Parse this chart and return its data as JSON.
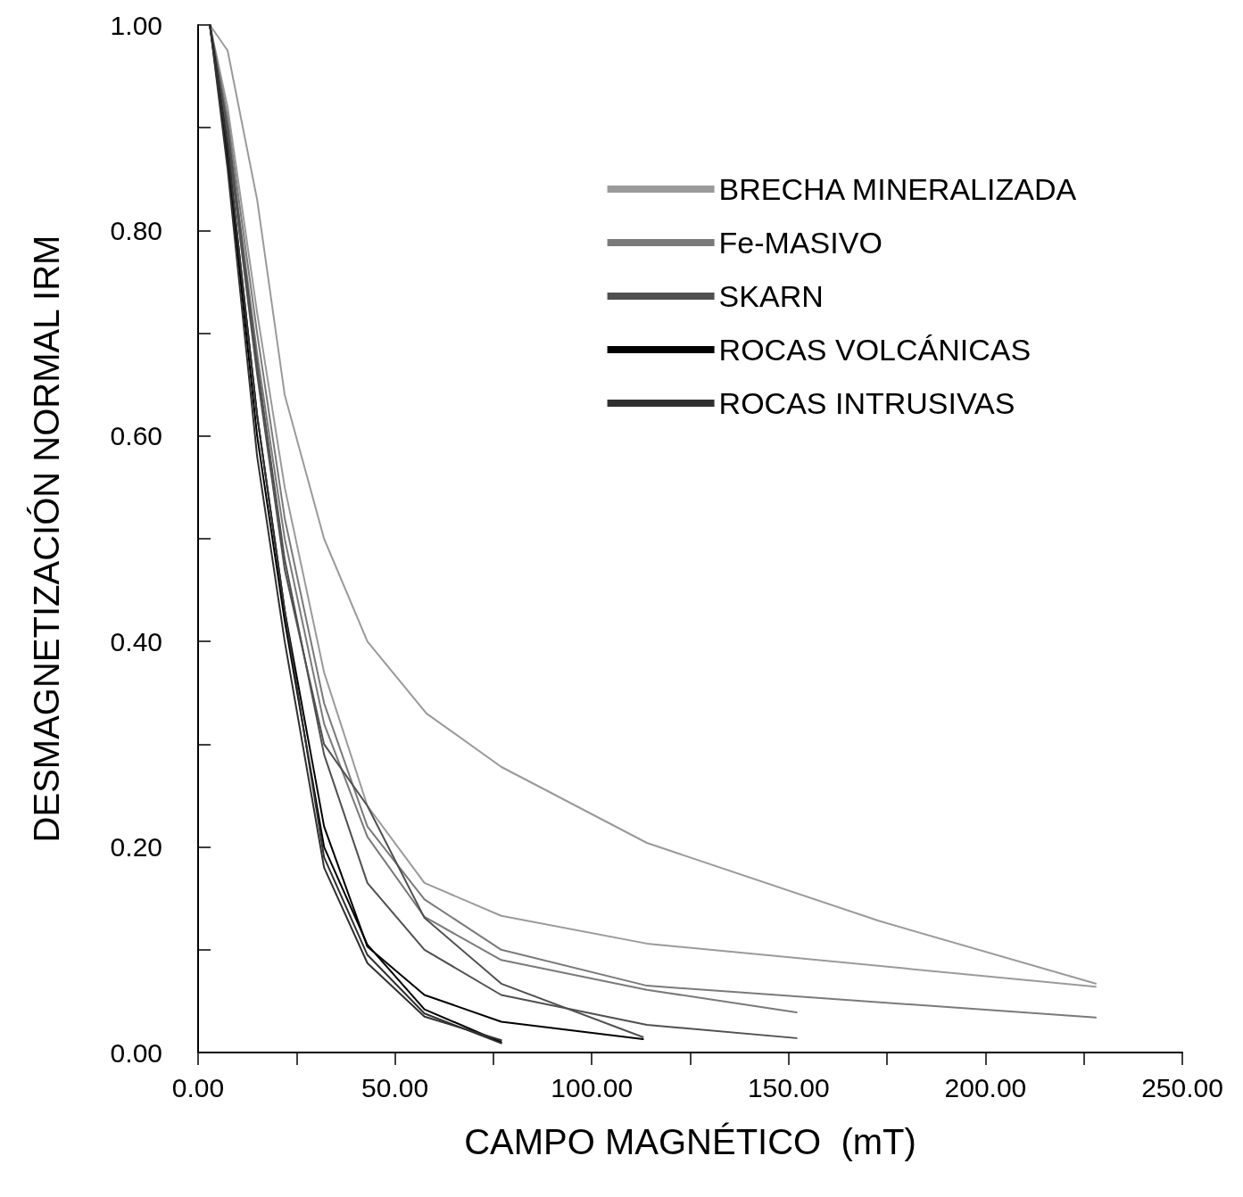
{
  "chart_data": {
    "type": "line",
    "xlabel": "CAMPO MAGNÉTICO  (mT)",
    "ylabel": "DESMAGNETIZACIÓN NORMAL IRM",
    "xlim": [
      0,
      250
    ],
    "ylim": [
      0,
      1
    ],
    "xticks": [
      {
        "value": 0,
        "label": "0.00"
      },
      {
        "value": 25,
        "label": null
      },
      {
        "value": 50,
        "label": "50.00"
      },
      {
        "value": 75,
        "label": null
      },
      {
        "value": 100,
        "label": "100.00"
      },
      {
        "value": 125,
        "label": null
      },
      {
        "value": 150,
        "label": "150.00"
      },
      {
        "value": 175,
        "label": null
      },
      {
        "value": 200,
        "label": "200.00"
      },
      {
        "value": 225,
        "label": null
      },
      {
        "value": 250,
        "label": "250.00"
      }
    ],
    "yticks": [
      {
        "value": 0,
        "label": "0.00"
      },
      {
        "value": 0.1,
        "label": null
      },
      {
        "value": 0.2,
        "label": "0.20"
      },
      {
        "value": 0.3,
        "label": null
      },
      {
        "value": 0.4,
        "label": "0.40"
      },
      {
        "value": 0.5,
        "label": null
      },
      {
        "value": 0.6,
        "label": "0.60"
      },
      {
        "value": 0.7,
        "label": null
      },
      {
        "value": 0.8,
        "label": "0.80"
      },
      {
        "value": 0.9,
        "label": null
      },
      {
        "value": 1,
        "label": "1.00"
      }
    ],
    "grid": false,
    "legend": "top right",
    "marker": "none",
    "line_style": "solid",
    "series": [
      {
        "name": "BRECHA MINERALIZADA",
        "color": "#9a9a9a",
        "x": [
          3,
          7.5,
          15,
          22,
          32,
          43,
          58,
          77,
          114,
          173,
          228
        ],
        "values": [
          1,
          0.975,
          0.83,
          0.64,
          0.5,
          0.4,
          0.33,
          0.278,
          0.204,
          0.128,
          0.067
        ]
      },
      {
        "color": "#9a9a9a",
        "x": [
          3,
          7.5,
          15,
          22,
          32,
          43,
          57.5,
          77,
          114,
          228
        ],
        "values": [
          1,
          0.92,
          0.72,
          0.55,
          0.37,
          0.24,
          0.165,
          0.133,
          0.106,
          0.064
        ]
      },
      {
        "name": "Fe-MASIVO",
        "color": "#7a7a7a",
        "x": [
          3,
          7.5,
          15,
          22,
          32,
          43,
          57.5,
          77,
          114,
          228
        ],
        "values": [
          1,
          0.91,
          0.7,
          0.52,
          0.34,
          0.22,
          0.149,
          0.1,
          0.065,
          0.034
        ]
      },
      {
        "color": "#7a7a7a",
        "x": [
          3,
          7.5,
          15,
          22,
          32,
          43,
          57.5,
          77,
          114,
          152
        ],
        "values": [
          1,
          0.9,
          0.68,
          0.5,
          0.32,
          0.21,
          0.132,
          0.09,
          0.061,
          0.039
        ]
      },
      {
        "name": "SKARN",
        "color": "#505050",
        "x": [
          3,
          7.5,
          15,
          22,
          32,
          43,
          57.5,
          77,
          114,
          152
        ],
        "values": [
          1,
          0.9,
          0.67,
          0.48,
          0.29,
          0.165,
          0.1,
          0.056,
          0.027,
          0.014
        ]
      },
      {
        "color": "#505050",
        "x": [
          3,
          7.5,
          15,
          22,
          32,
          43,
          57.5,
          77,
          113
        ],
        "values": [
          1,
          0.89,
          0.66,
          0.47,
          0.3,
          0.24,
          0.131,
          0.067,
          0.015
        ]
      },
      {
        "name": "ROCAS VOLCÁNICAS",
        "color": "#000000",
        "x": [
          3,
          7.5,
          15,
          22,
          32,
          43,
          57.5,
          77,
          113
        ],
        "values": [
          1,
          0.88,
          0.62,
          0.43,
          0.22,
          0.103,
          0.056,
          0.03,
          0.013
        ]
      },
      {
        "color": "#000000",
        "x": [
          3,
          7.5,
          15,
          22,
          32,
          43,
          57.5,
          77
        ],
        "values": [
          1,
          0.87,
          0.6,
          0.42,
          0.2,
          0.105,
          0.042,
          0.01
        ]
      },
      {
        "name": "ROCAS INTRUSIVAS",
        "color": "#303030",
        "x": [
          3,
          7.5,
          15,
          22,
          32,
          43,
          57.5,
          77
        ],
        "values": [
          1,
          0.88,
          0.62,
          0.43,
          0.19,
          0.095,
          0.038,
          0.009
        ]
      },
      {
        "color": "#303030",
        "x": [
          3,
          7.5,
          15,
          22,
          32,
          43,
          57.5,
          77
        ],
        "values": [
          1,
          0.86,
          0.58,
          0.4,
          0.18,
          0.087,
          0.035,
          0.012
        ]
      }
    ]
  }
}
